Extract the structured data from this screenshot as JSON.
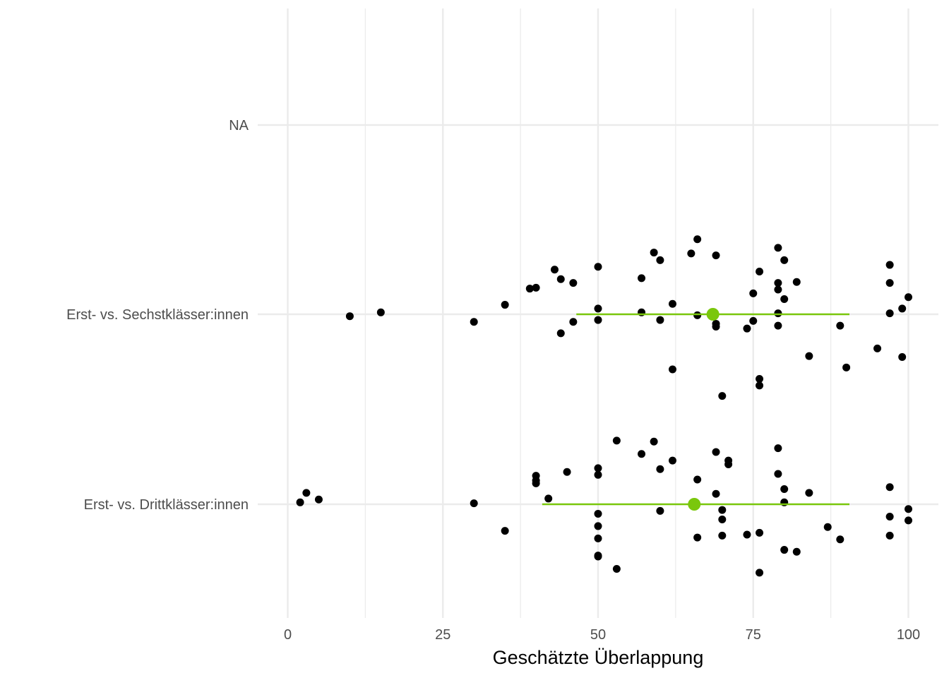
{
  "chart_data": {
    "type": "scatter",
    "title": "",
    "xlabel": "Geschätzte Überlappung",
    "ylabel": "",
    "xlim": [
      0,
      100
    ],
    "x_ticks": [
      0,
      25,
      50,
      75,
      100
    ],
    "x_tick_labels": [
      "0",
      "25",
      "50",
      "75",
      "100"
    ],
    "categories": [
      "Erst- vs. Drittklässer:innen",
      "Erst- vs. Sechstklässer:innen",
      "NA"
    ],
    "grid": true,
    "legend": "none",
    "colors": {
      "points": "#000000",
      "summary": "#7ac70c",
      "grid": "#ebebeb"
    },
    "series": [
      {
        "category": "Erst- vs. Drittklässer:innen",
        "summary": {
          "mean": 65.5,
          "low": 41,
          "high": 90.5
        },
        "points": [
          {
            "x": 2,
            "j": 0.01
          },
          {
            "x": 3,
            "j": 0.06
          },
          {
            "x": 5,
            "j": 0.025
          },
          {
            "x": 30,
            "j": 0.005
          },
          {
            "x": 35,
            "j": -0.14
          },
          {
            "x": 40,
            "j": 0.15
          },
          {
            "x": 40,
            "j": 0.125
          },
          {
            "x": 40,
            "j": 0.11
          },
          {
            "x": 42,
            "j": 0.03
          },
          {
            "x": 45,
            "j": 0.17
          },
          {
            "x": 50,
            "j": 0.19
          },
          {
            "x": 50,
            "j": 0.155
          },
          {
            "x": 50,
            "j": -0.05
          },
          {
            "x": 50,
            "j": -0.115
          },
          {
            "x": 50,
            "j": -0.18
          },
          {
            "x": 50,
            "j": -0.27
          },
          {
            "x": 50,
            "j": -0.275
          },
          {
            "x": 53,
            "j": 0.335
          },
          {
            "x": 53,
            "j": -0.34
          },
          {
            "x": 57,
            "j": 0.265
          },
          {
            "x": 59,
            "j": 0.33
          },
          {
            "x": 60,
            "j": 0.185
          },
          {
            "x": 60,
            "j": -0.035
          },
          {
            "x": 62,
            "j": 0.23
          },
          {
            "x": 66,
            "j": 0.13
          },
          {
            "x": 66,
            "j": -0.175
          },
          {
            "x": 69,
            "j": 0.275
          },
          {
            "x": 69,
            "j": 0.055
          },
          {
            "x": 70,
            "j": -0.03
          },
          {
            "x": 70,
            "j": -0.08
          },
          {
            "x": 70,
            "j": -0.165
          },
          {
            "x": 71,
            "j": 0.23
          },
          {
            "x": 71,
            "j": 0.21
          },
          {
            "x": 74,
            "j": -0.16
          },
          {
            "x": 76,
            "j": -0.15
          },
          {
            "x": 76,
            "j": -0.36
          },
          {
            "x": 79,
            "j": 0.295
          },
          {
            "x": 79,
            "j": 0.16
          },
          {
            "x": 80,
            "j": 0.08
          },
          {
            "x": 80,
            "j": 0.01
          },
          {
            "x": 80,
            "j": -0.24
          },
          {
            "x": 82,
            "j": -0.25
          },
          {
            "x": 84,
            "j": 0.06
          },
          {
            "x": 87,
            "j": -0.12
          },
          {
            "x": 89,
            "j": -0.185
          },
          {
            "x": 97,
            "j": 0.09
          },
          {
            "x": 97,
            "j": -0.065
          },
          {
            "x": 97,
            "j": -0.165
          },
          {
            "x": 100,
            "j": -0.025
          },
          {
            "x": 100,
            "j": -0.085
          }
        ]
      },
      {
        "category": "Erst- vs. Sechstklässer:innen",
        "summary": {
          "mean": 68.5,
          "low": 46.5,
          "high": 90.5
        },
        "points": [
          {
            "x": 10,
            "j": -0.01
          },
          {
            "x": 15,
            "j": 0.01
          },
          {
            "x": 30,
            "j": -0.04
          },
          {
            "x": 35,
            "j": 0.05
          },
          {
            "x": 39,
            "j": 0.135
          },
          {
            "x": 40,
            "j": 0.14
          },
          {
            "x": 43,
            "j": 0.235
          },
          {
            "x": 44,
            "j": 0.185
          },
          {
            "x": 44,
            "j": -0.1
          },
          {
            "x": 46,
            "j": 0.165
          },
          {
            "x": 46,
            "j": -0.04
          },
          {
            "x": 50,
            "j": 0.25
          },
          {
            "x": 50,
            "j": 0.03
          },
          {
            "x": 50,
            "j": -0.03
          },
          {
            "x": 57,
            "j": 0.19
          },
          {
            "x": 57,
            "j": 0.01
          },
          {
            "x": 59,
            "j": 0.325
          },
          {
            "x": 60,
            "j": 0.285
          },
          {
            "x": 60,
            "j": -0.03
          },
          {
            "x": 62,
            "j": 0.055
          },
          {
            "x": 62,
            "j": -0.29
          },
          {
            "x": 65,
            "j": 0.32
          },
          {
            "x": 66,
            "j": 0.395
          },
          {
            "x": 66,
            "j": -0.005
          },
          {
            "x": 69,
            "j": 0.31
          },
          {
            "x": 69,
            "j": -0.05
          },
          {
            "x": 69,
            "j": -0.065
          },
          {
            "x": 70,
            "j": -0.43
          },
          {
            "x": 74,
            "j": -0.075
          },
          {
            "x": 75,
            "j": 0.11
          },
          {
            "x": 75,
            "j": -0.035
          },
          {
            "x": 76,
            "j": 0.225
          },
          {
            "x": 76,
            "j": -0.34
          },
          {
            "x": 76,
            "j": -0.375
          },
          {
            "x": 79,
            "j": 0.35
          },
          {
            "x": 79,
            "j": 0.165
          },
          {
            "x": 79,
            "j": 0.13
          },
          {
            "x": 79,
            "j": 0.005
          },
          {
            "x": 79,
            "j": -0.06
          },
          {
            "x": 80,
            "j": 0.285
          },
          {
            "x": 80,
            "j": 0.08
          },
          {
            "x": 82,
            "j": 0.17
          },
          {
            "x": 84,
            "j": -0.22
          },
          {
            "x": 89,
            "j": -0.06
          },
          {
            "x": 90,
            "j": -0.28
          },
          {
            "x": 95,
            "j": -0.18
          },
          {
            "x": 97,
            "j": 0.26
          },
          {
            "x": 97,
            "j": 0.165
          },
          {
            "x": 97,
            "j": 0.005
          },
          {
            "x": 99,
            "j": 0.03
          },
          {
            "x": 99,
            "j": -0.225
          },
          {
            "x": 100,
            "j": 0.09
          }
        ]
      },
      {
        "category": "NA",
        "points": []
      }
    ]
  }
}
